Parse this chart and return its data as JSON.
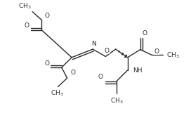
{
  "bg_color": "#ffffff",
  "line_color": "#2a2a2a",
  "line_width": 1.0,
  "font_size": 6.5,
  "fig_width": 2.72,
  "fig_height": 1.88,
  "dpi": 100,
  "xlim": [
    0,
    10
  ],
  "ylim": [
    0,
    7
  ]
}
